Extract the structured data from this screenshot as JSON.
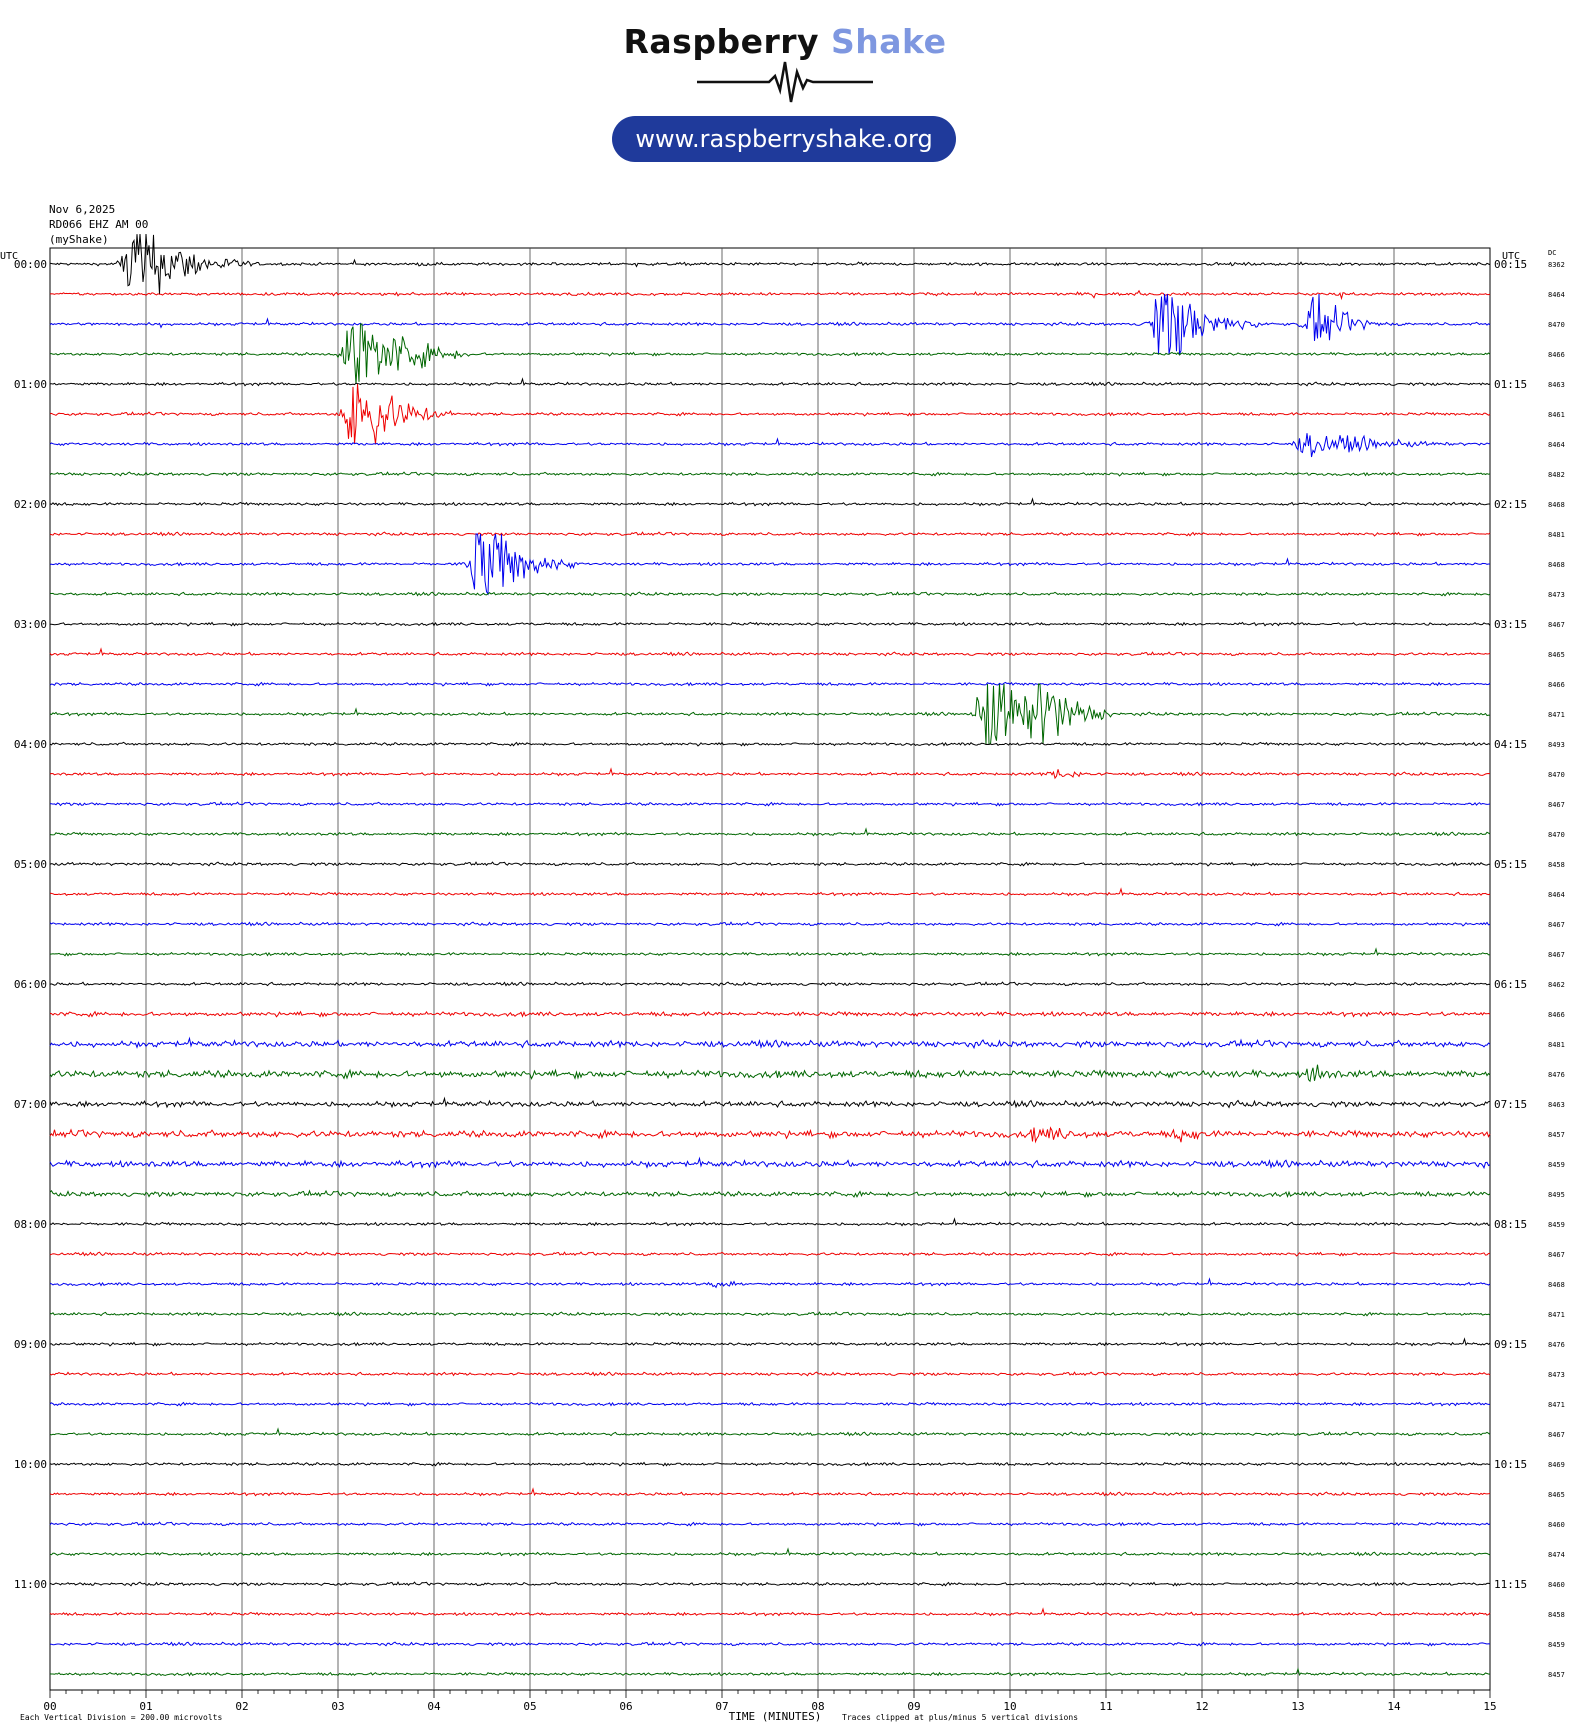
{
  "logo": {
    "title_part1": "Raspberry",
    "title_part2": "Shake",
    "url": "www.raspberryshake.org",
    "brand_color": "#1f3a9b",
    "accent_color": "#7e97e0"
  },
  "header": {
    "date": "Nov 6,2025",
    "station": "RD066 EHZ AM 00",
    "network": "(myShake)"
  },
  "axis_labels": {
    "left_utc": "UTC",
    "right_utc": "UTC",
    "dc": "DC"
  },
  "footer": {
    "xlabel": "TIME (MINUTES)",
    "scale_note": "Each Vertical Division = 200.00 microvolts",
    "clip_note": "Traces clipped at plus/minus 5 vertical divisions"
  },
  "chart_data": {
    "type": "line",
    "title": "Nov 6,2025 RD066 EHZ AM 00 (myShake)",
    "xlabel": "TIME (MINUTES)",
    "xlim": [
      0,
      15
    ],
    "x_ticks": [
      "00",
      "01",
      "02",
      "03",
      "04",
      "05",
      "06",
      "07",
      "08",
      "09",
      "10",
      "11",
      "12",
      "13",
      "14",
      "15"
    ],
    "grid": true,
    "colors": [
      "#000000",
      "#ee0000",
      "#0000ee",
      "#006600"
    ],
    "rows_count": 48,
    "row_minutes": 15,
    "left_labels": [
      "00:00",
      "01:00",
      "02:00",
      "03:00",
      "04:00",
      "05:00",
      "06:00",
      "07:00",
      "08:00",
      "09:00",
      "10:00",
      "11:00"
    ],
    "right_labels": [
      "00:15",
      "01:15",
      "02:15",
      "03:15",
      "04:15",
      "05:15",
      "06:15",
      "07:15",
      "08:15",
      "09:15",
      "10:15",
      "11:15"
    ],
    "dc_values": [
      "8362",
      "8464",
      "8470",
      "8466",
      "8463",
      "8461",
      "8464",
      "8482",
      "8468",
      "8481",
      "8468",
      "8473",
      "8467",
      "8465",
      "8466",
      "8471",
      "8493",
      "8470",
      "8467",
      "8470",
      "8458",
      "8464",
      "8467",
      "8467",
      "8462",
      "8466",
      "8481",
      "8476",
      "8463",
      "8457",
      "8459",
      "8495",
      "8459",
      "8467",
      "8468",
      "8471",
      "8476",
      "8473",
      "8471",
      "8467",
      "8469",
      "8465",
      "8460",
      "8474",
      "8460",
      "8458",
      "8459",
      "8457"
    ],
    "events": [
      {
        "row": 0,
        "minute": 0.9,
        "amplitude": 5,
        "duration": 1.2
      },
      {
        "row": 3,
        "minute": 3.2,
        "amplitude": 5,
        "duration": 1.2
      },
      {
        "row": 5,
        "minute": 3.2,
        "amplitude": 5,
        "duration": 1.0
      },
      {
        "row": 2,
        "minute": 11.6,
        "amplitude": 5,
        "duration": 1.0
      },
      {
        "row": 2,
        "minute": 13.2,
        "amplitude": 2.5,
        "duration": 0.8
      },
      {
        "row": 6,
        "minute": 13.1,
        "amplitude": 1.2,
        "duration": 2.0
      },
      {
        "row": 10,
        "minute": 4.5,
        "amplitude": 5,
        "duration": 1.0
      },
      {
        "row": 15,
        "minute": 9.8,
        "amplitude": 5,
        "duration": 1.0
      },
      {
        "row": 15,
        "minute": 10.3,
        "amplitude": 5,
        "duration": 0.8
      },
      {
        "row": 17,
        "minute": 10.5,
        "amplitude": 0.5,
        "duration": 1.0
      },
      {
        "row": 27,
        "minute": 13.2,
        "amplitude": 1.0,
        "duration": 0.6
      },
      {
        "row": 29,
        "minute": 10.3,
        "amplitude": 0.8,
        "duration": 1.5
      },
      {
        "row": 29,
        "minute": 11.8,
        "amplitude": 0.7,
        "duration": 1.0
      },
      {
        "row": 34,
        "minute": 7.0,
        "amplitude": 0.6,
        "duration": 0.5
      }
    ],
    "noise_rows": [
      {
        "row": 25,
        "level": 0.18
      },
      {
        "row": 26,
        "level": 0.25
      },
      {
        "row": 27,
        "level": 0.3
      },
      {
        "row": 28,
        "level": 0.22
      },
      {
        "row": 29,
        "level": 0.28
      },
      {
        "row": 30,
        "level": 0.25
      },
      {
        "row": 31,
        "level": 0.2
      }
    ]
  }
}
